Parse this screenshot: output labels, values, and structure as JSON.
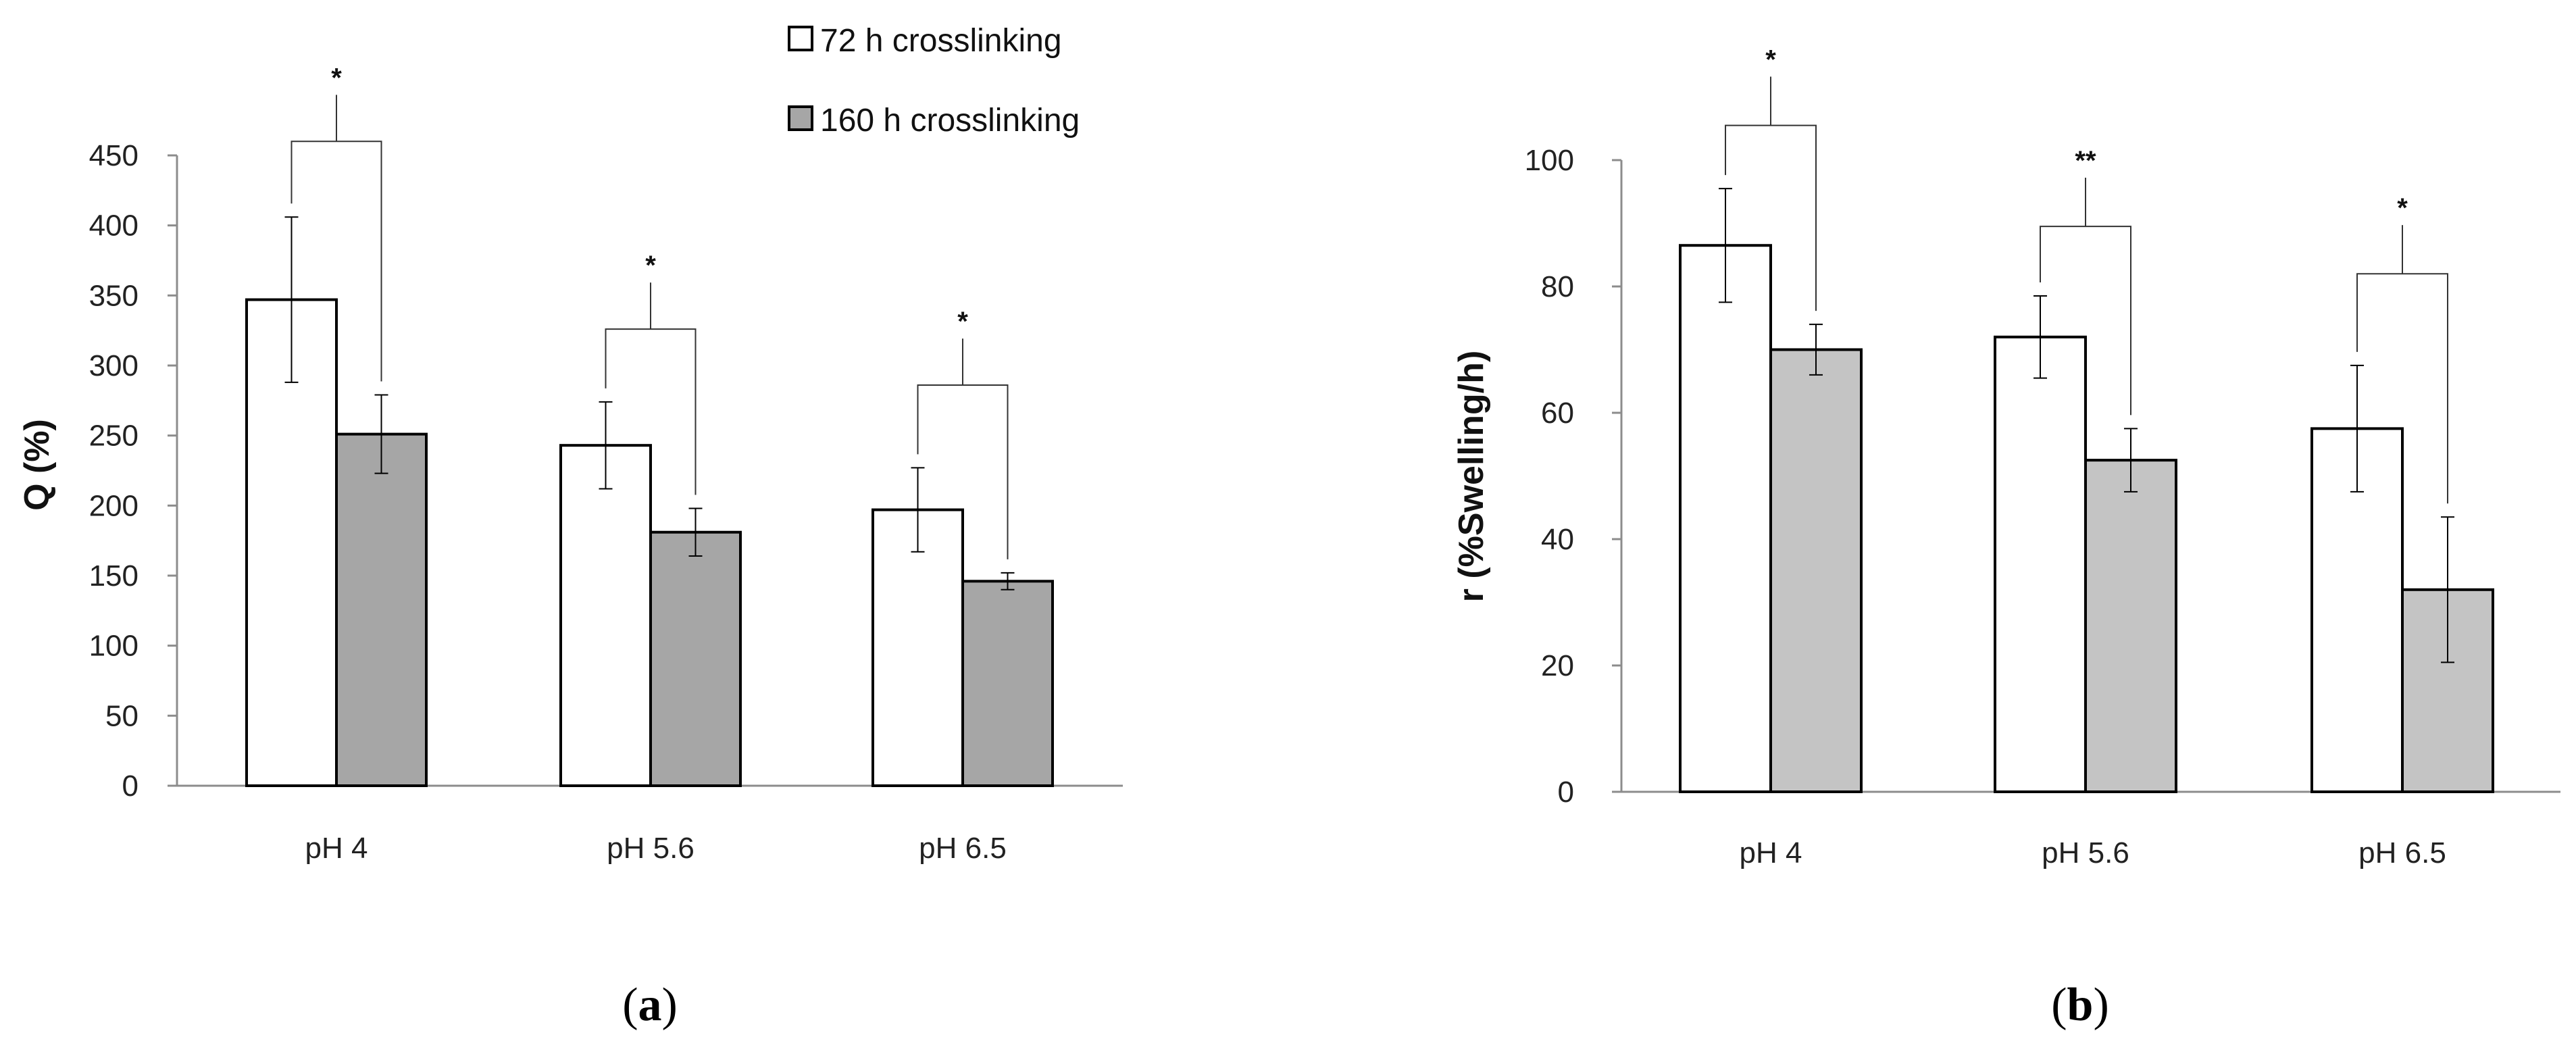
{
  "legend": {
    "series1_label": "72 h crosslinking",
    "series2_label": "160 h crosslinking"
  },
  "colors": {
    "series1_fill": "#ffffff",
    "series2_fill_a": "#a6a6a6",
    "series2_fill_b": "#c4c4c4",
    "stroke": "#000000",
    "axis": "#8c8c8c"
  },
  "chart_data": [
    {
      "type": "bar",
      "panel_label": "a",
      "ylabel": "Q (%)",
      "xlabel": "",
      "ylim": [
        0,
        450
      ],
      "yticks": [
        0,
        50,
        100,
        150,
        200,
        250,
        300,
        350,
        400,
        450
      ],
      "categories": [
        "pH 4",
        "pH 5.6",
        "pH 6.5"
      ],
      "series": [
        {
          "name": "72 h crosslinking",
          "values": [
            347,
            243,
            197
          ],
          "errors": [
            59,
            31,
            30
          ]
        },
        {
          "name": "160 h crosslinking",
          "values": [
            251,
            181,
            146
          ],
          "errors": [
            28,
            17,
            6
          ]
        }
      ],
      "significance": [
        "*",
        "*",
        "*"
      ],
      "significance_line_level": [
        460,
        326,
        286
      ],
      "significance_star_level": [
        499,
        365,
        325
      ]
    },
    {
      "type": "bar",
      "panel_label": "b",
      "ylabel": "r (%Swelling/h)",
      "xlabel": "",
      "ylim": [
        0,
        100
      ],
      "yticks": [
        0,
        20,
        40,
        60,
        80,
        100
      ],
      "categories": [
        "pH 4",
        "pH 5.6",
        "pH 6.5"
      ],
      "series": [
        {
          "name": "72 h crosslinking",
          "values": [
            86.5,
            72,
            57.5
          ],
          "errors": [
            9,
            6.5,
            10
          ]
        },
        {
          "name": "160 h crosslinking",
          "values": [
            70,
            52.5,
            32
          ],
          "errors": [
            4,
            5,
            11.5
          ]
        }
      ],
      "significance": [
        "*",
        "**",
        "*"
      ],
      "significance_line_level": [
        105.5,
        89.5,
        82
      ],
      "significance_star_level": [
        114.5,
        98.5,
        91
      ]
    }
  ]
}
